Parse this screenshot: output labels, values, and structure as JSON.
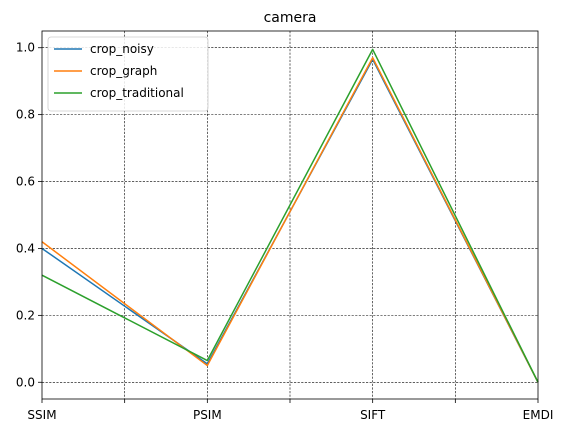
{
  "chart_data": {
    "type": "line",
    "title": "camera",
    "xlabel": "",
    "ylabel": "",
    "categories": [
      "SSIM",
      "PSIM",
      "SIFT",
      "EMDI"
    ],
    "x_minor_ticks": true,
    "ylim": [
      -0.05,
      1.05
    ],
    "yticks": [
      0.0,
      0.2,
      0.4,
      0.6,
      0.8,
      1.0
    ],
    "ytick_labels": [
      "0.0",
      "0.2",
      "0.4",
      "0.6",
      "0.8",
      "1.0"
    ],
    "grid": true,
    "legend_position": "top-left",
    "series": [
      {
        "name": "crop_noisy",
        "color": "#1f77b4",
        "values": [
          0.4,
          0.055,
          0.965,
          0.0
        ]
      },
      {
        "name": "crop_graph",
        "color": "#ff7f0e",
        "values": [
          0.42,
          0.05,
          0.97,
          0.0
        ]
      },
      {
        "name": "crop_traditional",
        "color": "#2ca02c",
        "values": [
          0.32,
          0.065,
          0.995,
          0.0
        ]
      }
    ]
  }
}
